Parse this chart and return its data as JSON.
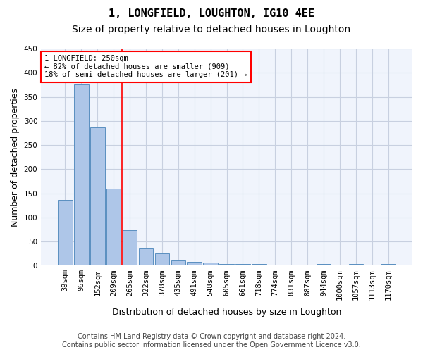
{
  "title": "1, LONGFIELD, LOUGHTON, IG10 4EE",
  "subtitle": "Size of property relative to detached houses in Loughton",
  "xlabel": "Distribution of detached houses by size in Loughton",
  "ylabel": "Number of detached properties",
  "bar_values": [
    136,
    376,
    287,
    159,
    74,
    37,
    25,
    10,
    8,
    6,
    3,
    4,
    4,
    0,
    0,
    0,
    3,
    0,
    3,
    0,
    3
  ],
  "all_labels": [
    "39sqm",
    "96sqm",
    "152sqm",
    "209sqm",
    "265sqm",
    "322sqm",
    "378sqm",
    "435sqm",
    "491sqm",
    "548sqm",
    "605sqm",
    "661sqm",
    "718sqm",
    "774sqm",
    "831sqm",
    "887sqm",
    "944sqm",
    "1000sqm",
    "1057sqm",
    "1113sqm",
    "1170sqm"
  ],
  "bar_color": "#aec6e8",
  "bar_edge_color": "#5a8fc0",
  "grid_color": "#c8d0e0",
  "background_color": "#f0f4fc",
  "vline_x": 3.5,
  "vline_color": "red",
  "annotation_text": "1 LONGFIELD: 250sqm\n← 82% of detached houses are smaller (909)\n18% of semi-detached houses are larger (201) →",
  "annotation_box_color": "white",
  "annotation_box_edge": "red",
  "ylim": [
    0,
    450
  ],
  "yticks": [
    0,
    50,
    100,
    150,
    200,
    250,
    300,
    350,
    400,
    450
  ],
  "footnote": "Contains HM Land Registry data © Crown copyright and database right 2024.\nContains public sector information licensed under the Open Government Licence v3.0.",
  "title_fontsize": 11,
  "subtitle_fontsize": 10,
  "ylabel_fontsize": 9,
  "xlabel_fontsize": 9,
  "tick_fontsize": 7.5,
  "footnote_fontsize": 7
}
